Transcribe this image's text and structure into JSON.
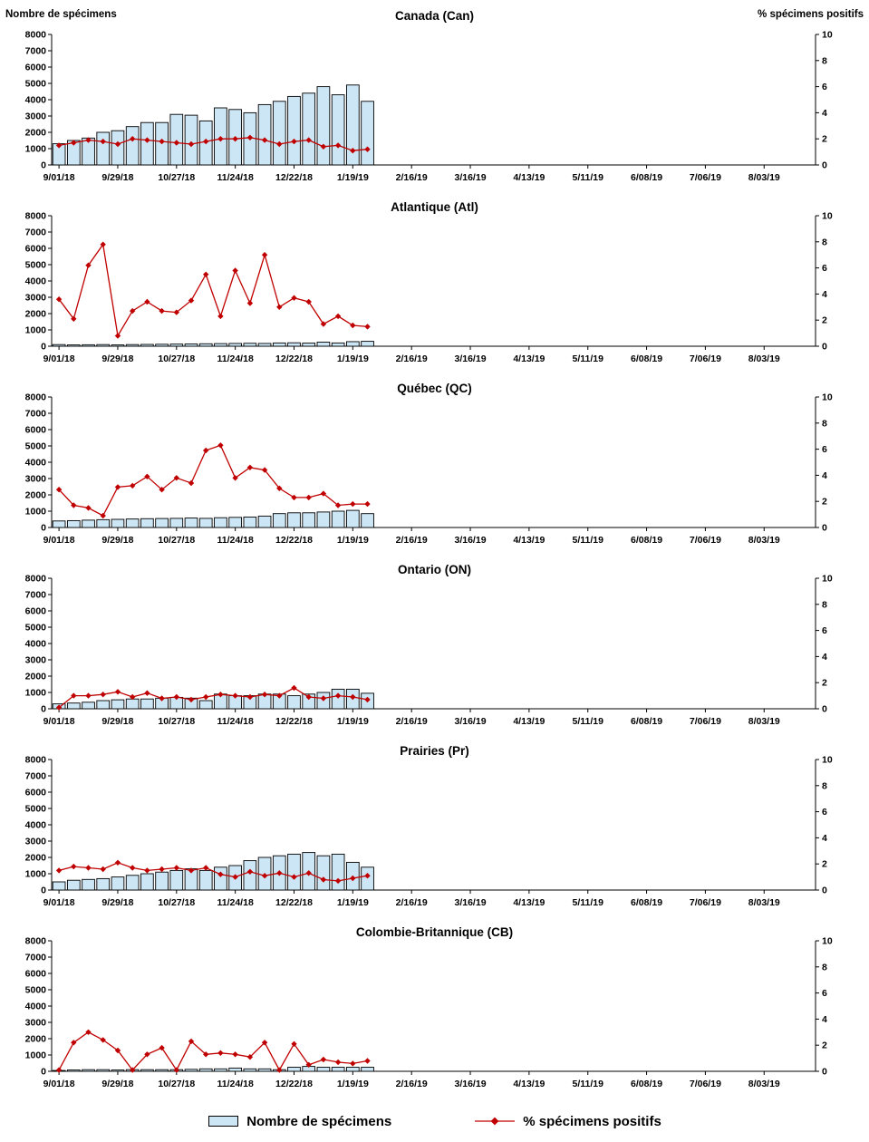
{
  "colors": {
    "bar_fill": "#CDE6F5",
    "bar_border": "#000000",
    "line_color": "#C00000",
    "axis_color": "#000000"
  },
  "legend": {
    "bars_label": "Nombre de spécimens",
    "line_label": "% spécimens positifs"
  },
  "chart_data": {
    "type": "bar+line",
    "x_tick_labels": [
      "9/01/18",
      "9/29/18",
      "10/27/18",
      "11/24/18",
      "12/22/18",
      "1/19/19",
      "2/16/19",
      "3/16/19",
      "4/13/19",
      "5/11/19",
      "6/08/19",
      "7/06/19",
      "8/03/19"
    ],
    "weeks_between_ticks": 4,
    "total_weeks": 52,
    "left_axis": {
      "label": "Nombre de spécimens",
      "min": 0,
      "max": 8000,
      "step": 1000
    },
    "right_axis": {
      "label": "% spécimens positifs",
      "min": 0,
      "max": 10,
      "step": 2
    },
    "charts": [
      {
        "title": "Canada (Can)",
        "series": [
          {
            "name": "Nombre de spécimens",
            "type": "bar",
            "axis": "left",
            "values": [
              1300,
              1500,
              1650,
              2000,
              2100,
              2350,
              2600,
              2600,
              3100,
              3050,
              2700,
              3500,
              3400,
              3200,
              3700,
              3900,
              4200,
              4400,
              4800,
              4300,
              4900,
              3900
            ]
          },
          {
            "name": "% spécimens positifs",
            "type": "line",
            "axis": "right",
            "values": [
              1.5,
              1.7,
              1.9,
              1.8,
              1.6,
              2.0,
              1.9,
              1.8,
              1.7,
              1.6,
              1.8,
              2.0,
              2.0,
              2.1,
              1.9,
              1.6,
              1.8,
              1.9,
              1.4,
              1.5,
              1.1,
              1.2
            ]
          }
        ]
      },
      {
        "title": "Atlantique (Atl)",
        "series": [
          {
            "name": "Nombre de spécimens",
            "type": "bar",
            "axis": "left",
            "values": [
              100,
              80,
              90,
              100,
              80,
              100,
              110,
              120,
              130,
              140,
              150,
              160,
              170,
              180,
              170,
              200,
              210,
              190,
              250,
              200,
              280,
              300
            ]
          },
          {
            "name": "% spécimens positifs",
            "type": "line",
            "axis": "right",
            "values": [
              3.6,
              2.1,
              6.2,
              7.8,
              0.8,
              2.7,
              3.4,
              2.7,
              2.6,
              3.5,
              5.5,
              2.3,
              5.8,
              3.3,
              7.0,
              3.0,
              3.7,
              3.4,
              1.7,
              2.3,
              1.6,
              1.5
            ]
          }
        ]
      },
      {
        "title": "Québec (QC)",
        "series": [
          {
            "name": "Nombre de spécimens",
            "type": "bar",
            "axis": "left",
            "values": [
              400,
              420,
              450,
              480,
              500,
              520,
              540,
              550,
              560,
              580,
              560,
              600,
              620,
              640,
              700,
              850,
              900,
              900,
              950,
              1000,
              1050,
              850
            ]
          },
          {
            "name": "% spécimens positifs",
            "type": "line",
            "axis": "right",
            "values": [
              2.9,
              1.7,
              1.5,
              0.9,
              3.1,
              3.2,
              3.9,
              2.9,
              3.8,
              3.4,
              5.9,
              6.3,
              3.8,
              4.6,
              4.4,
              3.0,
              2.3,
              2.3,
              2.6,
              1.7,
              1.8,
              1.8
            ]
          }
        ]
      },
      {
        "title": "Ontario (ON)",
        "series": [
          {
            "name": "Nombre de spécimens",
            "type": "bar",
            "axis": "left",
            "values": [
              300,
              350,
              400,
              500,
              550,
              600,
              600,
              650,
              700,
              650,
              500,
              900,
              800,
              800,
              900,
              900,
              800,
              900,
              1000,
              1200,
              1200,
              950
            ]
          },
          {
            "name": "% spécimens positifs",
            "type": "line",
            "axis": "right",
            "values": [
              0.1,
              1.0,
              1.0,
              1.1,
              1.3,
              0.9,
              1.2,
              0.8,
              0.9,
              0.7,
              0.9,
              1.1,
              1.0,
              0.9,
              1.1,
              1.0,
              1.6,
              0.9,
              0.8,
              1.0,
              0.9,
              0.7
            ]
          }
        ]
      },
      {
        "title": "Prairies (Pr)",
        "series": [
          {
            "name": "Nombre de spécimens",
            "type": "bar",
            "axis": "left",
            "values": [
              500,
              600,
              650,
              700,
              800,
              900,
              1000,
              1100,
              1200,
              1300,
              1200,
              1400,
              1500,
              1800,
              2000,
              2100,
              2200,
              2300,
              2100,
              2200,
              1700,
              1400
            ]
          },
          {
            "name": "% spécimens positifs",
            "type": "line",
            "axis": "right",
            "values": [
              1.5,
              1.8,
              1.7,
              1.6,
              2.1,
              1.7,
              1.5,
              1.6,
              1.7,
              1.5,
              1.7,
              1.2,
              1.0,
              1.4,
              1.1,
              1.3,
              1.0,
              1.3,
              0.8,
              0.7,
              0.9,
              1.1
            ]
          }
        ]
      },
      {
        "title": "Colombie-Britannique (CB)",
        "series": [
          {
            "name": "Nombre de spécimens",
            "type": "bar",
            "axis": "left",
            "values": [
              50,
              80,
              100,
              100,
              80,
              100,
              100,
              100,
              100,
              120,
              150,
              150,
              200,
              150,
              150,
              100,
              250,
              300,
              250,
              250,
              250,
              250
            ]
          },
          {
            "name": "% spécimens positifs",
            "type": "line",
            "axis": "right",
            "values": [
              0.1,
              2.2,
              3.0,
              2.4,
              1.6,
              0.1,
              1.3,
              1.8,
              0.1,
              2.3,
              1.3,
              1.4,
              1.3,
              1.1,
              2.2,
              0.1,
              2.1,
              0.5,
              0.9,
              0.7,
              0.6,
              0.8
            ]
          }
        ]
      }
    ]
  }
}
